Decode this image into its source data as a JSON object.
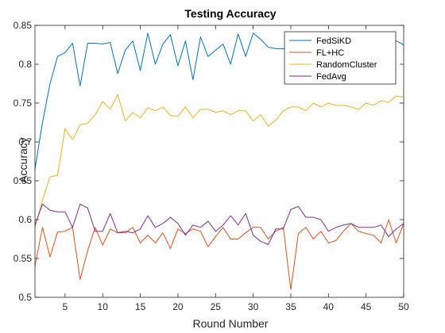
{
  "chart_data": {
    "type": "line",
    "title": "Testing Accuracy",
    "xlabel": "Round Number",
    "ylabel": "Accuracy",
    "xlim": [
      1,
      50
    ],
    "ylim": [
      0.5,
      0.85
    ],
    "xticks": [
      5,
      10,
      15,
      20,
      25,
      30,
      35,
      40,
      45,
      50
    ],
    "yticks": [
      0.5,
      0.55,
      0.6,
      0.65,
      0.7,
      0.75,
      0.8,
      0.85
    ],
    "grid": false,
    "legend_position": "top-right",
    "x": [
      1,
      2,
      3,
      4,
      5,
      6,
      7,
      8,
      9,
      10,
      11,
      12,
      13,
      14,
      15,
      16,
      17,
      18,
      19,
      20,
      21,
      22,
      23,
      24,
      25,
      26,
      27,
      28,
      29,
      30,
      31,
      32,
      33,
      34,
      35,
      36,
      37,
      38,
      39,
      40,
      41,
      42,
      43,
      44,
      45,
      46,
      47,
      48,
      49,
      50
    ],
    "series": [
      {
        "name": "FedSiKD",
        "color": "#0072BD",
        "values": [
          0.665,
          0.725,
          0.775,
          0.81,
          0.815,
          0.827,
          0.772,
          0.827,
          0.827,
          0.826,
          0.828,
          0.788,
          0.818,
          0.83,
          0.792,
          0.84,
          0.8,
          0.826,
          0.838,
          0.798,
          0.83,
          0.78,
          0.835,
          0.81,
          0.818,
          0.826,
          0.8,
          0.839,
          0.81,
          0.84,
          0.832,
          0.822,
          0.82,
          0.82,
          0.82,
          0.83,
          0.83,
          0.83,
          0.83,
          0.83,
          0.83,
          0.83,
          0.83,
          0.83,
          0.83,
          0.83,
          0.83,
          0.83,
          0.83,
          0.825
        ]
      },
      {
        "name": "FL+HC",
        "color": "#D95319",
        "values": [
          0.54,
          0.59,
          0.552,
          0.584,
          0.585,
          0.59,
          0.523,
          0.56,
          0.59,
          0.567,
          0.588,
          0.583,
          0.583,
          0.59,
          0.57,
          0.58,
          0.57,
          0.583,
          0.563,
          0.588,
          0.582,
          0.588,
          0.585,
          0.565,
          0.578,
          0.59,
          0.575,
          0.575,
          0.583,
          0.59,
          0.59,
          0.575,
          0.585,
          0.59,
          0.51,
          0.582,
          0.59,
          0.575,
          0.585,
          0.57,
          0.573,
          0.585,
          0.595,
          0.585,
          0.582,
          0.58,
          0.57,
          0.6,
          0.57,
          0.595
        ]
      },
      {
        "name": "RandomCluster",
        "color": "#EDB120",
        "values": [
          0.59,
          0.625,
          0.655,
          0.657,
          0.717,
          0.703,
          0.722,
          0.724,
          0.735,
          0.752,
          0.742,
          0.761,
          0.727,
          0.738,
          0.731,
          0.744,
          0.74,
          0.745,
          0.734,
          0.733,
          0.745,
          0.731,
          0.742,
          0.742,
          0.738,
          0.74,
          0.735,
          0.74,
          0.74,
          0.727,
          0.735,
          0.72,
          0.728,
          0.74,
          0.745,
          0.745,
          0.74,
          0.75,
          0.745,
          0.75,
          0.747,
          0.747,
          0.745,
          0.742,
          0.75,
          0.747,
          0.753,
          0.751,
          0.759,
          0.758
        ]
      },
      {
        "name": "FedAvg",
        "color": "#7E2F8E",
        "values": [
          0.593,
          0.62,
          0.612,
          0.61,
          0.61,
          0.59,
          0.62,
          0.615,
          0.585,
          0.585,
          0.608,
          0.583,
          0.585,
          0.583,
          0.588,
          0.605,
          0.59,
          0.595,
          0.603,
          0.595,
          0.58,
          0.593,
          0.59,
          0.598,
          0.585,
          0.593,
          0.605,
          0.593,
          0.608,
          0.58,
          0.572,
          0.568,
          0.588,
          0.588,
          0.613,
          0.617,
          0.603,
          0.603,
          0.6,
          0.585,
          0.59,
          0.593,
          0.595,
          0.59,
          0.59,
          0.59,
          0.593,
          0.578,
          0.588,
          0.595
        ]
      }
    ]
  }
}
